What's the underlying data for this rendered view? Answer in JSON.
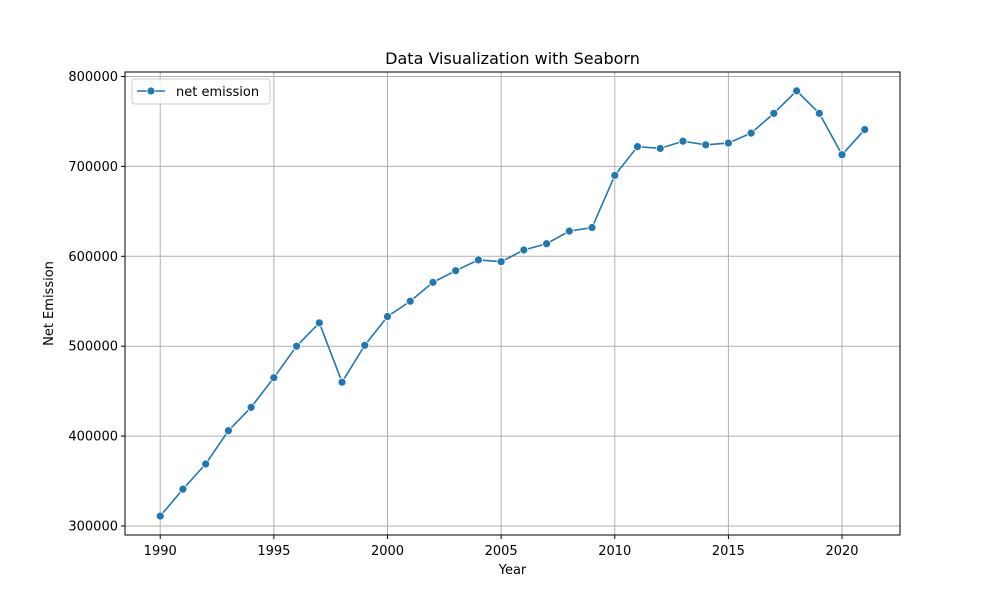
{
  "chart_data": {
    "type": "line",
    "title": "Data Visualization with Seaborn",
    "xlabel": "Year",
    "ylabel": "Net Emission",
    "xlim": [
      1988.45,
      2022.55
    ],
    "ylim": [
      290000,
      805000
    ],
    "xticks": [
      1990,
      1995,
      2000,
      2005,
      2010,
      2015,
      2020
    ],
    "yticks": [
      300000,
      400000,
      500000,
      600000,
      700000,
      800000
    ],
    "grid": true,
    "legend": "top-left",
    "color": "#1f77b4",
    "series": [
      {
        "name": "net emission",
        "marker": "circle",
        "x": [
          1990,
          1991,
          1992,
          1993,
          1994,
          1995,
          1996,
          1997,
          1998,
          1999,
          2000,
          2001,
          2002,
          2003,
          2004,
          2005,
          2006,
          2007,
          2008,
          2009,
          2010,
          2011,
          2012,
          2013,
          2014,
          2015,
          2016,
          2017,
          2018,
          2019,
          2020,
          2021
        ],
        "y": [
          311000,
          341000,
          369000,
          406000,
          432000,
          465000,
          500000,
          526000,
          460000,
          501000,
          533000,
          550000,
          571000,
          584000,
          596000,
          594000,
          607000,
          614000,
          628000,
          632000,
          690000,
          722000,
          720000,
          728000,
          724000,
          726000,
          737000,
          759000,
          784000,
          759000,
          713000,
          741000
        ]
      }
    ]
  }
}
